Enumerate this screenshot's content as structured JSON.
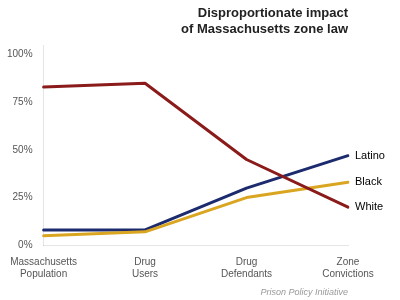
{
  "chart_data": {
    "type": "line",
    "title": "Disproportionate impact\nof Massachusetts zone law",
    "categories": [
      "Massachusetts\nPopulation",
      "Drug\nUsers",
      "Drug\nDefendants",
      "Zone\nConvictions"
    ],
    "series": [
      {
        "name": "White",
        "color": "#8B1A1A",
        "values": [
          0.83,
          0.85,
          0.45,
          0.2
        ]
      },
      {
        "name": "Black",
        "color": "#DAA520",
        "values": [
          0.05,
          0.07,
          0.25,
          0.33
        ]
      },
      {
        "name": "Latino",
        "color": "#1C2B6E",
        "values": [
          0.08,
          0.08,
          0.3,
          0.47
        ]
      }
    ],
    "ylim": [
      0,
      1.05
    ],
    "yticks": [
      {
        "value": 0,
        "label": "0%"
      },
      {
        "value": 0.25,
        "label": "25%"
      },
      {
        "value": 0.5,
        "label": "50%"
      },
      {
        "value": 0.75,
        "label": "75%"
      },
      {
        "value": 1.0,
        "label": "100%"
      }
    ],
    "grid": false,
    "annotations": [
      "Prison Policy Initiative"
    ]
  }
}
